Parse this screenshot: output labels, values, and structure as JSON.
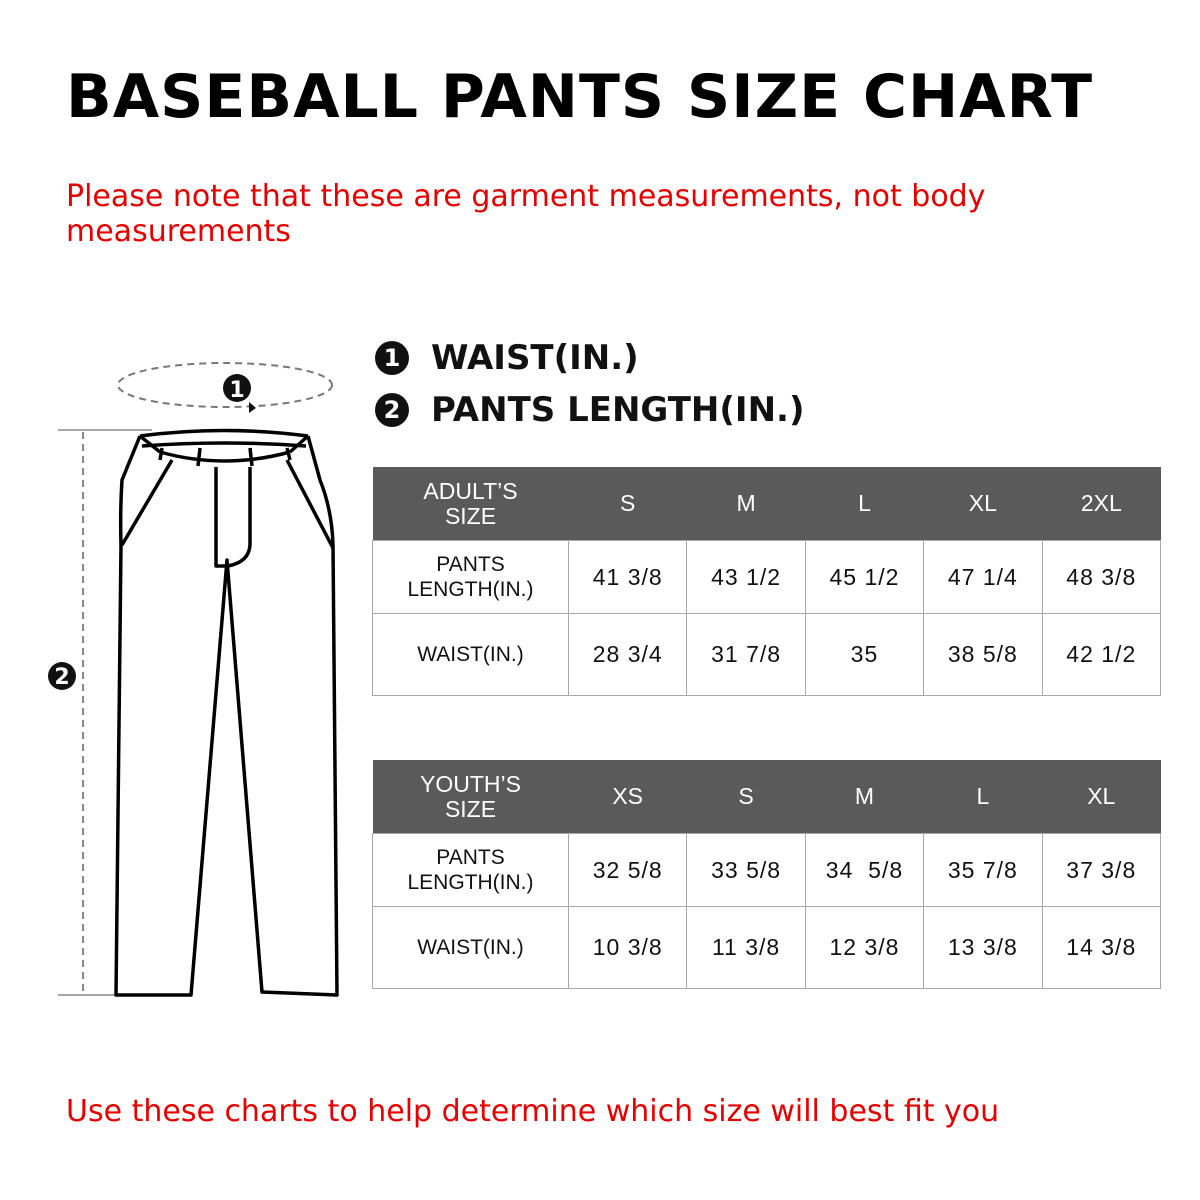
{
  "title": "BASEBALL PANTS SIZE CHART",
  "note": {
    "line1": "Please note that these are garment measurements, not body",
    "line2": "measurements"
  },
  "legend": [
    {
      "number": "1",
      "label": "WAIST(IN.)"
    },
    {
      "number": "2",
      "label": "PANTS LENGTH(IN.)"
    }
  ],
  "diagram": {
    "waist_marker": "1",
    "length_marker": "2"
  },
  "adult_table": {
    "header": [
      "ADULT’S SIZE",
      "S",
      "M",
      "L",
      "XL",
      "2XL"
    ],
    "rows": [
      [
        "PANTS LENGTH(IN.)",
        "41 3/8",
        "43 1/2",
        "45 1/2",
        "47 1/4",
        "48 3/8"
      ],
      [
        "WAIST(IN.)",
        "28 3/4",
        "31 7/8",
        "35",
        "38 5/8",
        "42 1/2"
      ]
    ]
  },
  "youth_table": {
    "header": [
      "YOUTH’S SIZE",
      "XS",
      "S",
      "M",
      "L",
      "XL"
    ],
    "rows": [
      [
        "PANTS LENGTH(IN.)",
        "32 5/8",
        "33 5/8",
        "34  5/8",
        "35 7/8",
        "37 3/8"
      ],
      [
        "WAIST(IN.)",
        "10 3/8",
        "11 3/8",
        "12 3/8",
        "13 3/8",
        "14 3/8"
      ]
    ]
  },
  "footer": "Use these charts to help determine which size will best fit you",
  "colors": {
    "accent_red": "#e80000",
    "header_gray": "#5a5a5a",
    "border_gray": "#a8a8a8"
  }
}
